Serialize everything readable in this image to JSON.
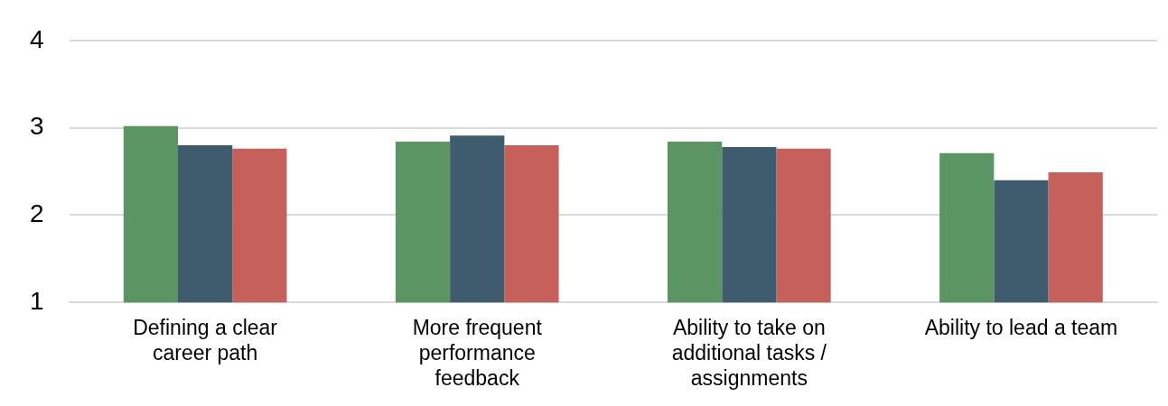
{
  "chart_data": {
    "type": "bar",
    "categories": [
      "Defining a clear\ncareer path",
      "More frequent\nperformance\nfeedback",
      "Ability to take on\nadditional tasks /\nassignments",
      "Ability to lead a team"
    ],
    "series": [
      {
        "color": "#5b9563",
        "values": [
          3.02,
          2.84,
          2.84,
          2.71
        ]
      },
      {
        "color": "#3f5b6e",
        "values": [
          2.8,
          2.91,
          2.78,
          2.4
        ]
      },
      {
        "color": "#c5605a",
        "values": [
          2.76,
          2.8,
          2.76,
          2.49
        ]
      }
    ],
    "ylim": [
      1,
      4
    ],
    "yticks": [
      1,
      2,
      3,
      4
    ],
    "grid": "y",
    "legend": false
  }
}
